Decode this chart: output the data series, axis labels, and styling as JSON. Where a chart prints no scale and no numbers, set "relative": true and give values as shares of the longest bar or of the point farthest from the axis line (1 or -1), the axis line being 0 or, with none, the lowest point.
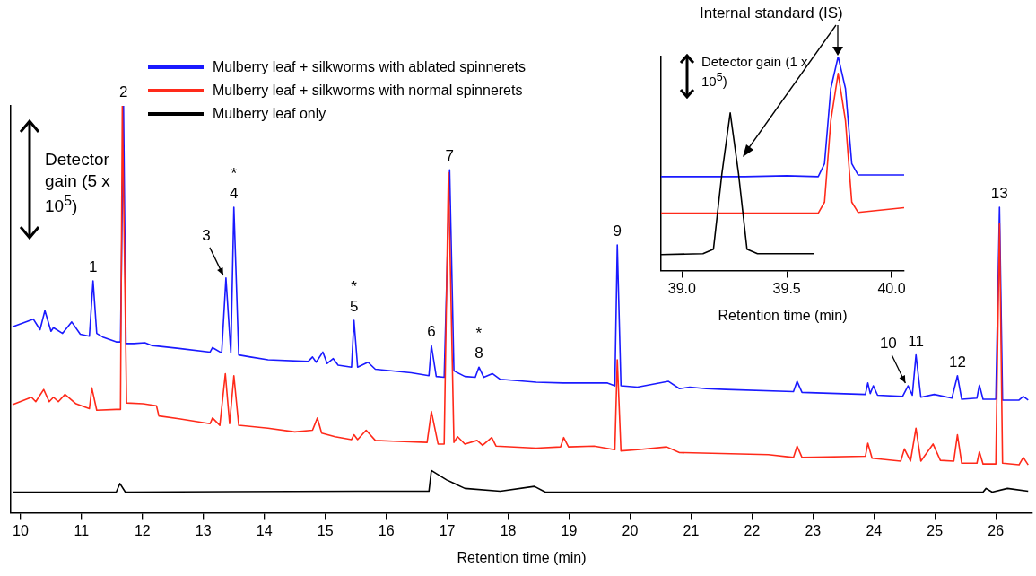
{
  "chart_data": [
    {
      "type": "line",
      "relative": true,
      "xlabel": "Retention time (min)",
      "xlim": [
        9.84,
        26.6
      ],
      "xticks": [
        10,
        11,
        12,
        13,
        14,
        15,
        16,
        17,
        18,
        19,
        20,
        21,
        22,
        23,
        24,
        25,
        26
      ],
      "tick_labels": "x",
      "grid": false,
      "legend": "top left",
      "marker": "none",
      "series": [
        {
          "name": "Mulberry leaf + silkworms with ablated spinnerets",
          "color": "#1a1aff",
          "x": [
            9.87,
            10.21,
            10.32,
            10.4,
            10.5,
            10.54,
            10.69,
            10.84,
            10.98,
            11.13,
            11.19,
            11.25,
            11.35,
            11.57,
            11.64,
            11.69,
            11.73,
            11.86,
            12.04,
            12.16,
            12.6,
            13.11,
            13.15,
            13.3,
            13.37,
            13.45,
            13.5,
            13.58,
            13.77,
            14.06,
            14.72,
            14.79,
            14.85,
            14.96,
            15.03,
            15.13,
            15.21,
            15.43,
            15.47,
            15.53,
            15.7,
            15.82,
            16.41,
            16.7,
            16.74,
            16.82,
            16.95,
            17.04,
            17.11,
            17.29,
            17.46,
            17.52,
            17.6,
            17.74,
            17.87,
            18.46,
            18.9,
            19.63,
            19.75,
            19.79,
            19.85,
            20.12,
            20.63,
            20.81,
            20.98,
            21.25,
            21.57,
            22.68,
            22.74,
            22.82,
            23.86,
            23.9,
            23.94,
            23.99,
            24.06,
            24.47,
            24.56,
            24.63,
            24.69,
            24.77,
            24.99,
            25.28,
            25.37,
            25.44,
            25.69,
            25.73,
            25.79,
            26.0,
            26.06,
            26.11,
            26.38,
            26.45,
            26.53
          ],
          "values": [
            0.457,
            0.476,
            0.45,
            0.497,
            0.446,
            0.455,
            0.441,
            0.469,
            0.439,
            0.434,
            0.57,
            0.441,
            0.432,
            0.42,
            0.42,
            1.0,
            0.416,
            0.416,
            0.418,
            0.411,
            0.404,
            0.395,
            0.406,
            0.393,
            0.577,
            0.393,
            0.751,
            0.388,
            0.383,
            0.376,
            0.372,
            0.383,
            0.37,
            0.395,
            0.367,
            0.379,
            0.363,
            0.358,
            0.473,
            0.358,
            0.37,
            0.353,
            0.344,
            0.337,
            0.411,
            0.335,
            0.333,
            0.843,
            0.349,
            0.335,
            0.333,
            0.358,
            0.333,
            0.342,
            0.328,
            0.321,
            0.319,
            0.319,
            0.312,
            0.658,
            0.312,
            0.309,
            0.323,
            0.305,
            0.309,
            0.305,
            0.303,
            0.298,
            0.323,
            0.296,
            0.291,
            0.319,
            0.293,
            0.312,
            0.289,
            0.286,
            0.312,
            0.289,
            0.388,
            0.284,
            0.291,
            0.282,
            0.337,
            0.279,
            0.282,
            0.314,
            0.279,
            0.279,
            0.751,
            0.277,
            0.277,
            0.286,
            0.277
          ]
        },
        {
          "name": "Mulberry leaf + silkworms with normal spinnerets",
          "color": "#ff2a1a",
          "x": [
            9.87,
            10.18,
            10.25,
            10.38,
            10.47,
            10.54,
            10.62,
            10.73,
            10.91,
            11.13,
            11.17,
            11.25,
            11.57,
            11.64,
            11.67,
            11.74,
            12.01,
            12.23,
            12.27,
            12.6,
            13.11,
            13.15,
            13.27,
            13.36,
            13.43,
            13.5,
            13.58,
            14.06,
            14.5,
            14.79,
            14.87,
            14.94,
            15.16,
            15.43,
            15.47,
            15.53,
            15.67,
            15.82,
            16.11,
            16.67,
            16.74,
            16.85,
            16.95,
            17.02,
            17.11,
            17.17,
            17.29,
            17.49,
            17.58,
            17.73,
            17.8,
            18.46,
            18.86,
            18.91,
            18.99,
            19.41,
            19.75,
            19.79,
            19.85,
            20.12,
            20.6,
            20.81,
            22.27,
            22.68,
            22.74,
            22.82,
            23.86,
            23.9,
            23.97,
            24.44,
            24.5,
            24.6,
            24.69,
            24.77,
            24.97,
            25.09,
            25.31,
            25.37,
            25.44,
            25.69,
            25.73,
            25.79,
            26.0,
            26.06,
            26.11,
            26.38,
            26.45,
            26.53
          ],
          "values": [
            0.266,
            0.284,
            0.273,
            0.303,
            0.273,
            0.284,
            0.273,
            0.291,
            0.268,
            0.256,
            0.307,
            0.252,
            0.254,
            0.254,
            1.0,
            0.27,
            0.268,
            0.263,
            0.238,
            0.231,
            0.219,
            0.233,
            0.215,
            0.342,
            0.219,
            0.337,
            0.215,
            0.208,
            0.199,
            0.203,
            0.233,
            0.196,
            0.187,
            0.18,
            0.192,
            0.18,
            0.203,
            0.178,
            0.176,
            0.173,
            0.249,
            0.169,
            0.169,
            0.836,
            0.173,
            0.187,
            0.169,
            0.178,
            0.166,
            0.185,
            0.164,
            0.159,
            0.162,
            0.185,
            0.162,
            0.164,
            0.155,
            0.376,
            0.152,
            0.155,
            0.162,
            0.148,
            0.143,
            0.136,
            0.164,
            0.136,
            0.139,
            0.171,
            0.134,
            0.127,
            0.157,
            0.127,
            0.208,
            0.127,
            0.169,
            0.129,
            0.127,
            0.192,
            0.122,
            0.122,
            0.15,
            0.12,
            0.12,
            0.711,
            0.122,
            0.118,
            0.136,
            0.118
          ]
        },
        {
          "name": "Mulberry leaf only",
          "color": "#000000",
          "x": [
            9.87,
            11.57,
            11.63,
            11.72,
            15.53,
            16.7,
            16.74,
            16.99,
            17.29,
            17.87,
            18.43,
            18.61,
            25.79,
            25.84,
            25.94,
            26.19,
            26.53
          ],
          "values": [
            0.051,
            0.051,
            0.072,
            0.051,
            0.053,
            0.053,
            0.104,
            0.081,
            0.06,
            0.053,
            0.065,
            0.051,
            0.051,
            0.06,
            0.051,
            0.06,
            0.053
          ]
        }
      ],
      "annotations": [
        "Detector gain (5 x 10$^{5}$)",
        {
          "text": "1",
          "x": 11.19,
          "y": 0.57
        },
        {
          "text": "2",
          "x": 11.69,
          "y": 1.0
        },
        {
          "text": "3",
          "x": 13.37,
          "y": 0.577
        },
        {
          "text": "4",
          "x": 13.5,
          "y": 0.751
        },
        {
          "text": "*",
          "x": 13.5,
          "y": 0.751
        },
        {
          "text": "5",
          "x": 15.47,
          "y": 0.473
        },
        {
          "text": "*",
          "x": 15.47,
          "y": 0.473
        },
        {
          "text": "6",
          "x": 16.74,
          "y": 0.411
        },
        {
          "text": "7",
          "x": 17.04,
          "y": 0.843
        },
        {
          "text": "8",
          "x": 17.52,
          "y": 0.358
        },
        {
          "text": "*",
          "x": 17.52,
          "y": 0.358
        },
        {
          "text": "9",
          "x": 19.79,
          "y": 0.658
        },
        {
          "text": "10",
          "x": 24.56,
          "y": 0.312
        },
        {
          "text": "11",
          "x": 24.69,
          "y": 0.388
        },
        {
          "text": "12",
          "x": 25.37,
          "y": 0.337
        },
        {
          "text": "13",
          "x": 26.06,
          "y": 0.751
        }
      ]
    },
    {
      "type": "line",
      "relative": true,
      "xlabel": "Retention time (min)",
      "xlim": [
        38.9,
        40.06
      ],
      "xticks": [
        {
          "value": 39,
          "label": "39.0"
        },
        39.5,
        {
          "value": 40,
          "label": "40.0"
        }
      ],
      "tick_labels": "x",
      "grid": false,
      "marker": "none",
      "series": [
        {
          "color": "#1a1aff",
          "x": [
            38.9,
            39.3,
            39.5,
            39.65,
            39.68,
            39.71,
            39.745,
            39.78,
            39.81,
            39.84,
            40.06
          ],
          "values": [
            0.439,
            0.439,
            0.443,
            0.439,
            0.5,
            0.85,
            1.0,
            0.85,
            0.5,
            0.447,
            0.447
          ]
        },
        {
          "color": "#ff2a1a",
          "x": [
            38.9,
            39.65,
            39.68,
            39.71,
            39.745,
            39.78,
            39.81,
            39.84,
            40.06
          ],
          "values": [
            0.268,
            0.268,
            0.32,
            0.7,
            0.921,
            0.7,
            0.32,
            0.272,
            0.294
          ]
        },
        {
          "color": "#000000",
          "x": [
            38.9,
            39.1,
            39.15,
            39.19,
            39.23,
            39.27,
            39.31,
            39.36,
            39.63
          ],
          "values": [
            0.075,
            0.079,
            0.1,
            0.45,
            0.737,
            0.45,
            0.1,
            0.079,
            0.079
          ]
        }
      ],
      "annotations": [
        "Internal standard (IS)",
        "Detector gain (1 x 10$^{5}$)"
      ]
    }
  ]
}
